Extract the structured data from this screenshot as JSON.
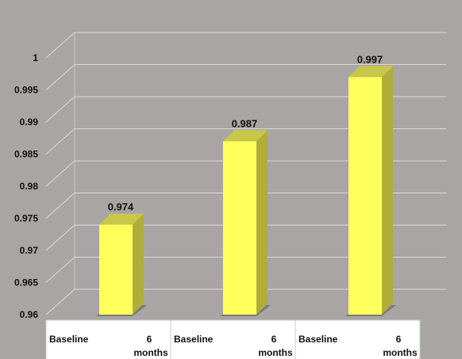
{
  "chart_data": {
    "type": "bar",
    "style": "3d",
    "title": "",
    "xlabel": "",
    "ylabel": "",
    "ylim": [
      0.96,
      1.0
    ],
    "yticks": [
      "0.96",
      "0.965",
      "0.97",
      "0.975",
      "0.98",
      "0.985",
      "0.99",
      "0.995",
      "1"
    ],
    "grid": true,
    "groups": [
      {
        "labels": [
          "Baseline",
          "6 months"
        ]
      },
      {
        "labels": [
          "Baseline",
          "6 months"
        ]
      },
      {
        "labels": [
          "Baseline",
          "6 months"
        ]
      }
    ],
    "values": [
      0.974,
      0.987,
      0.997
    ],
    "data_labels": [
      "0.974",
      "0.987",
      "0.997"
    ],
    "colors": {
      "plot_background": "#a9a5a5",
      "bar_front": "#ffff5c",
      "bar_side": "#b0ae38",
      "bar_top": "#c9c74a",
      "gridline": "#d9d9d9",
      "wall_edge": "#c8c8c8"
    }
  }
}
